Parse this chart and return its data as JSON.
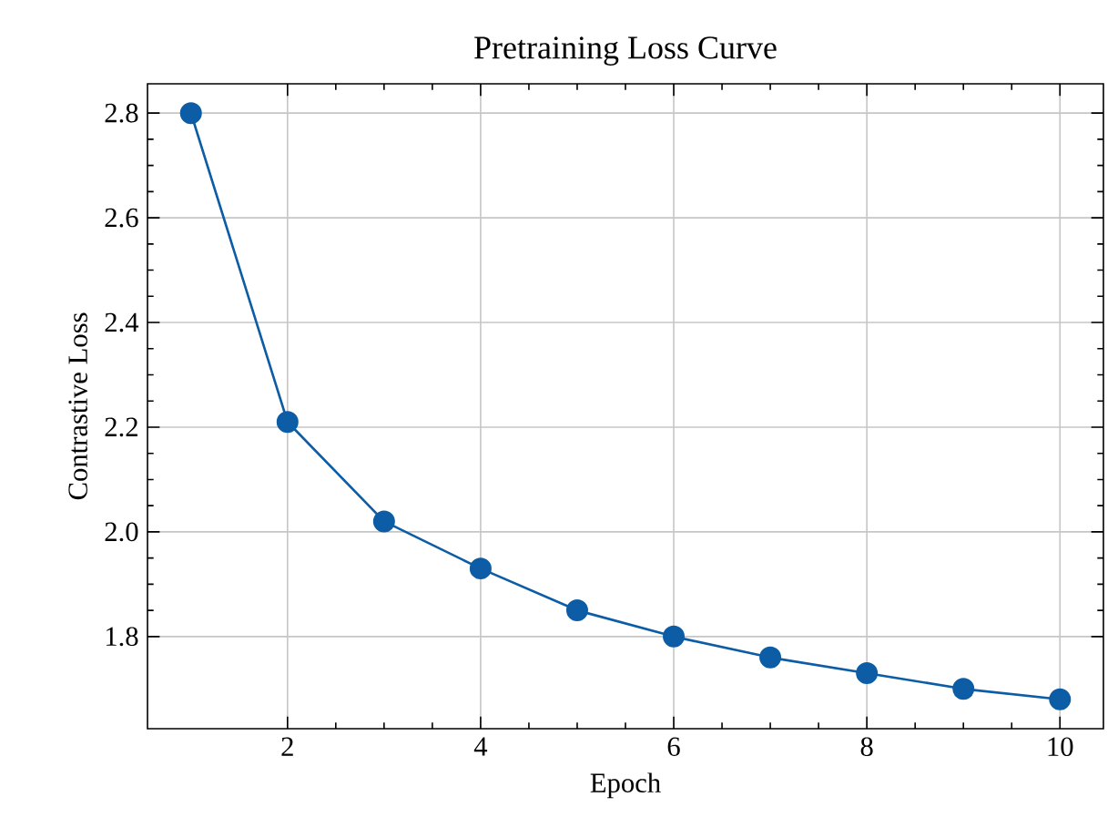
{
  "chart_data": {
    "type": "line",
    "title": "Pretraining Loss Curve",
    "xlabel": "Epoch",
    "ylabel": "Contrastive Loss",
    "x": [
      1,
      2,
      3,
      4,
      5,
      6,
      7,
      8,
      9,
      10
    ],
    "series": [
      {
        "color": "#0c5da5",
        "values": [
          2.8,
          2.21,
          2.02,
          1.93,
          1.85,
          1.8,
          1.76,
          1.73,
          1.7,
          1.68
        ]
      }
    ],
    "xlim": [
      0.55,
      10.45
    ],
    "ylim": [
      1.624,
      2.856
    ],
    "xticks": [
      2,
      4,
      6,
      8,
      10
    ],
    "yticks": [
      1.8,
      {
        "value": 2.0,
        "label": "2.0"
      },
      2.2,
      2.4,
      2.6,
      2.8
    ],
    "grid": true,
    "marker": "circle",
    "line_style": "solid"
  }
}
